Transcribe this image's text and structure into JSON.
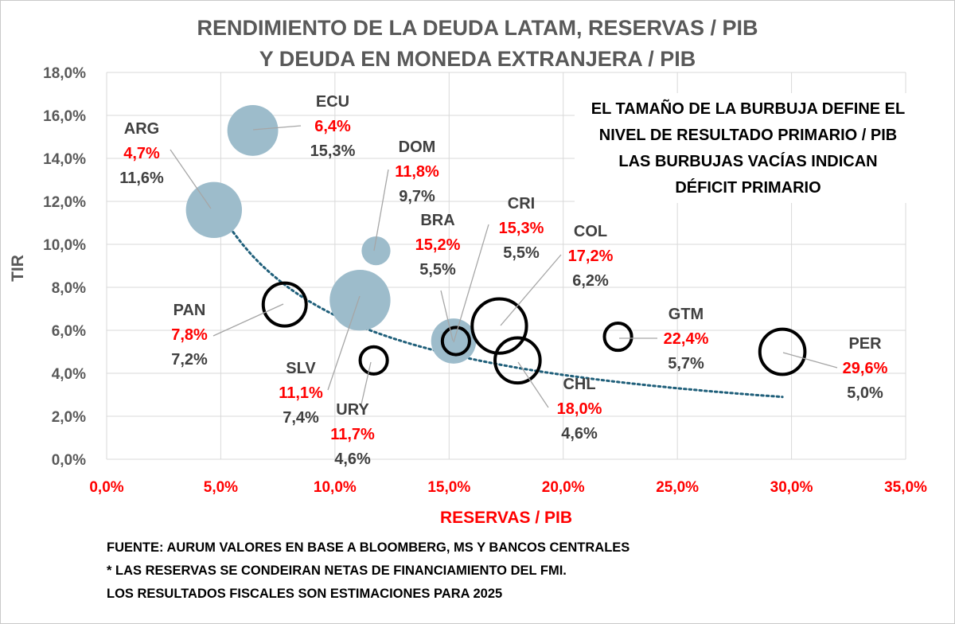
{
  "chart_data": {
    "type": "scatter",
    "title": [
      "RENDIMIENTO DE LA DEUDA LATAM, RESERVAS / PIB",
      "Y DEUDA EN MONEDA EXTRANJERA / PIB"
    ],
    "xlabel": "RESERVAS / PIB",
    "ylabel": "TIR",
    "xlim": [
      0,
      35
    ],
    "ylim": [
      0,
      18
    ],
    "xticks": [
      0,
      5,
      10,
      15,
      20,
      25,
      30,
      35
    ],
    "xtick_labels": [
      "0,0%",
      "5,0%",
      "10,0%",
      "15,0%",
      "20,0%",
      "25,0%",
      "30,0%",
      "35,0%"
    ],
    "yticks": [
      0,
      2,
      4,
      6,
      8,
      10,
      12,
      14,
      16,
      18
    ],
    "ytick_labels": [
      "0,0%",
      "2,0%",
      "4,0%",
      "6,0%",
      "8,0%",
      "10,0%",
      "12,0%",
      "14,0%",
      "16,0%",
      "18,0%"
    ],
    "grid": true,
    "annotation": [
      "EL TAMAÑO DE LA BURBUJA DEFINE EL",
      "NIVEL DE RESULTADO PRIMARIO / PIB",
      "LAS BURBUJAS VACÍAS INDICAN",
      "DÉFICIT PRIMARIO"
    ],
    "bubble_fill_color": "#9dbccb",
    "bubble_outline_color": "#000000",
    "trend_color": "#1f5f7a",
    "trendline": {
      "type": "power",
      "x_start": 4.7,
      "x_end": 29.6,
      "y_start": 12.0,
      "y_end": 2.9
    },
    "points": [
      {
        "name": "ARG",
        "x": 4.7,
        "y": 11.6,
        "x_label": "4,7%",
        "y_label": "11,6%",
        "filled": true,
        "size": 1.7
      },
      {
        "name": "ECU",
        "x": 6.4,
        "y": 15.3,
        "x_label": "6,4%",
        "y_label": "15,3%",
        "filled": true,
        "size": 1.4
      },
      {
        "name": "DOM",
        "x": 11.8,
        "y": 9.7,
        "x_label": "11,8%",
        "y_label": "9,7%",
        "filled": true,
        "size": 0.45
      },
      {
        "name": "SLV",
        "x": 11.1,
        "y": 7.4,
        "x_label": "11,1%",
        "y_label": "7,4%",
        "filled": true,
        "size": 2.0
      },
      {
        "name": "BRA",
        "x": 15.2,
        "y": 5.5,
        "x_label": "15,2%",
        "y_label": "5,5%",
        "filled": true,
        "size": 1.1
      },
      {
        "name": "PAN",
        "x": 7.8,
        "y": 7.2,
        "x_label": "7,8%",
        "y_label": "7,2%",
        "filled": false,
        "size": 1.0
      },
      {
        "name": "URY",
        "x": 11.7,
        "y": 4.6,
        "x_label": "11,7%",
        "y_label": "4,6%",
        "filled": false,
        "size": 0.4
      },
      {
        "name": "CRI",
        "x": 15.3,
        "y": 5.5,
        "x_label": "15,3%",
        "y_label": "5,5%",
        "filled": false,
        "size": 0.4
      },
      {
        "name": "COL",
        "x": 17.2,
        "y": 6.2,
        "x_label": "17,2%",
        "y_label": "6,2%",
        "filled": false,
        "size": 1.6
      },
      {
        "name": "CHL",
        "x": 18.0,
        "y": 4.6,
        "x_label": "18,0%",
        "y_label": "4,6%",
        "filled": false,
        "size": 1.1
      },
      {
        "name": "GTM",
        "x": 22.4,
        "y": 5.7,
        "x_label": "22,4%",
        "y_label": "5,7%",
        "filled": false,
        "size": 0.4
      },
      {
        "name": "PER",
        "x": 29.6,
        "y": 5.0,
        "x_label": "29,6%",
        "y_label": "5,0%",
        "filled": false,
        "size": 1.1
      }
    ]
  },
  "footer": [
    "FUENTE: AURUM VALORES EN BASE A BLOOMBERG, MS Y BANCOS CENTRALES",
    "* LAS RESERVAS SE CONDEIRAN NETAS DE FINANCIAMIENTO DEL FMI.",
    "LOS RESULTADOS FISCALES SON ESTIMACIONES PARA 2025"
  ]
}
